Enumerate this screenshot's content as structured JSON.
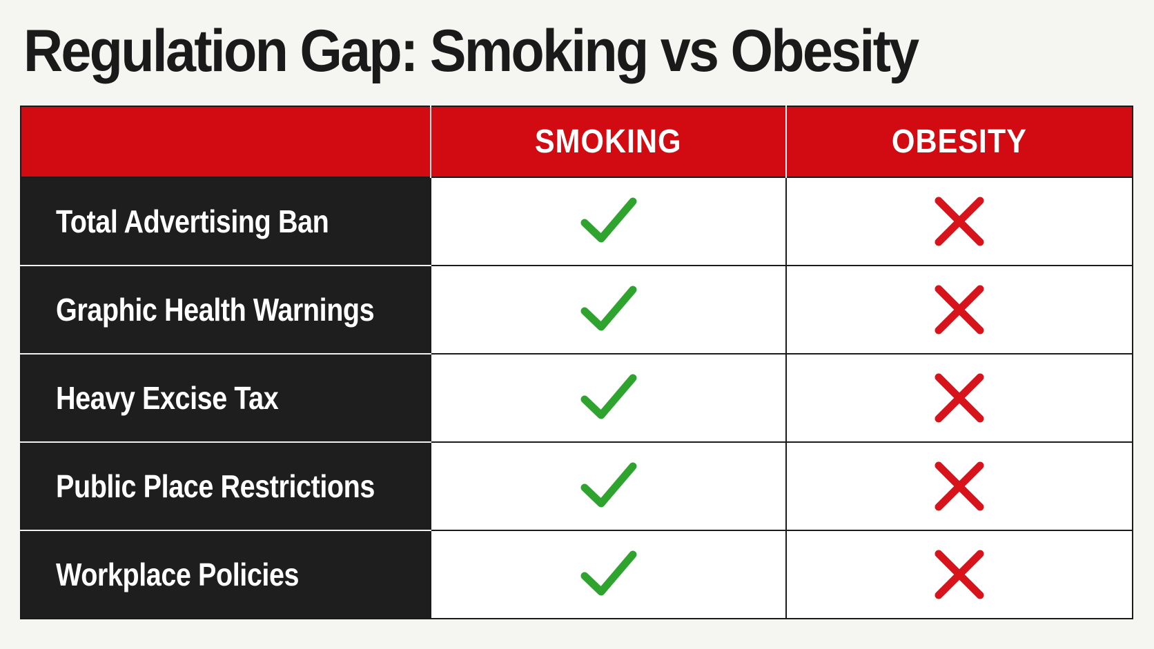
{
  "title": "Regulation Gap: Smoking vs Obesity",
  "colors": {
    "header_red": "#d20a11",
    "feature_column_dark": "#1e1e1e",
    "check_green": "#2ea32e",
    "cross_red": "#d7141c"
  },
  "icons": {
    "yes": "check-icon",
    "no": "cross-icon"
  },
  "chart_data": {
    "type": "table",
    "title": "Regulation Gap: Smoking vs Obesity",
    "columns": [
      "",
      "SMOKING",
      "OBESITY"
    ],
    "rows": [
      {
        "feature": "Total Advertising Ban",
        "smoking": true,
        "obesity": false
      },
      {
        "feature": "Graphic Health Warnings",
        "smoking": true,
        "obesity": false
      },
      {
        "feature": "Heavy Excise Tax",
        "smoking": true,
        "obesity": false
      },
      {
        "feature": "Public Place Restrictions",
        "smoking": true,
        "obesity": false
      },
      {
        "feature": "Workplace Policies",
        "smoking": true,
        "obesity": false
      }
    ]
  }
}
